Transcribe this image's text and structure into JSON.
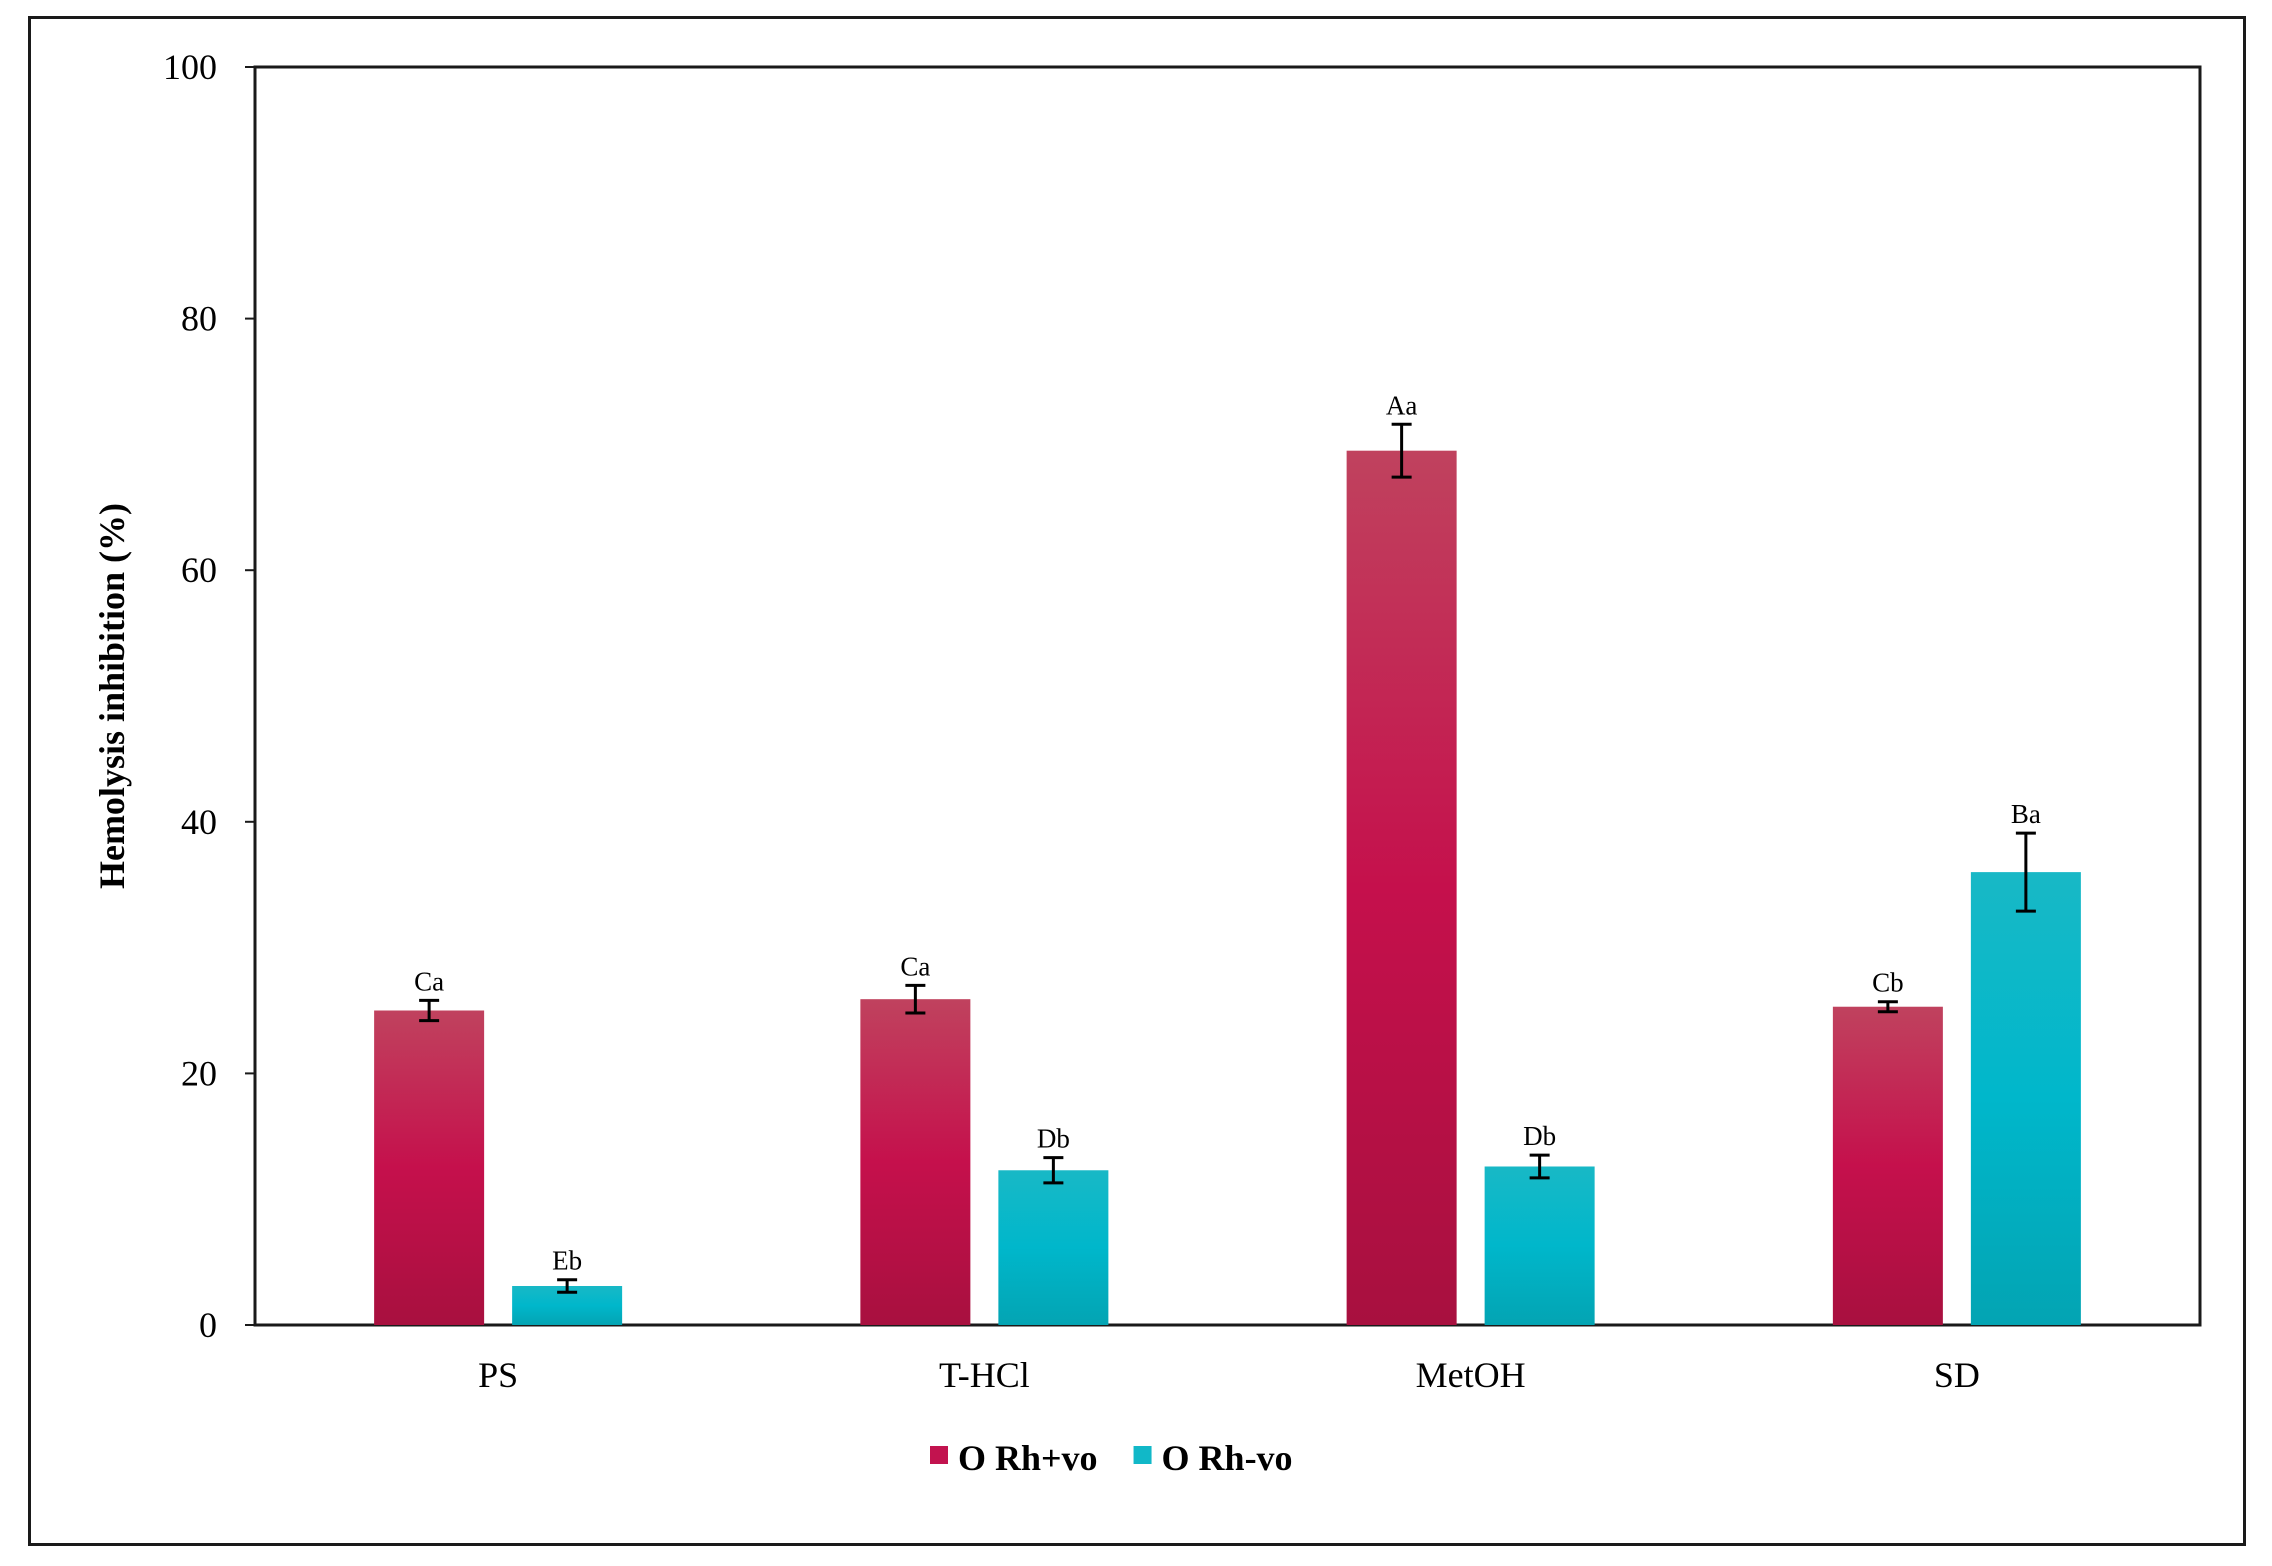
{
  "chart_data": {
    "type": "bar",
    "title": "",
    "xlabel": "",
    "ylabel": "Hemolysis inhibition (%)",
    "ylim": [
      0,
      100
    ],
    "yticks": [
      0,
      20,
      40,
      60,
      80,
      100
    ],
    "categories": [
      "PS",
      "T-HCl",
      "MetOH",
      "SD"
    ],
    "series": [
      {
        "name": "O Rh+vo",
        "color": "#c2134f",
        "values": [
          25.0,
          25.9,
          69.5,
          25.3
        ],
        "errors": [
          0.8,
          1.1,
          2.1,
          0.4
        ],
        "labels": [
          "Ca",
          "Ca",
          "Aa",
          "Cb"
        ]
      },
      {
        "name": "O Rh-vo",
        "color": "#11b8c8",
        "values": [
          3.1,
          12.3,
          12.6,
          36.0
        ],
        "errors": [
          0.5,
          1.0,
          0.9,
          3.1
        ],
        "labels": [
          "Eb",
          "Db",
          "Db",
          "Ba"
        ]
      }
    ],
    "grid": false,
    "legend_position": "bottom"
  }
}
